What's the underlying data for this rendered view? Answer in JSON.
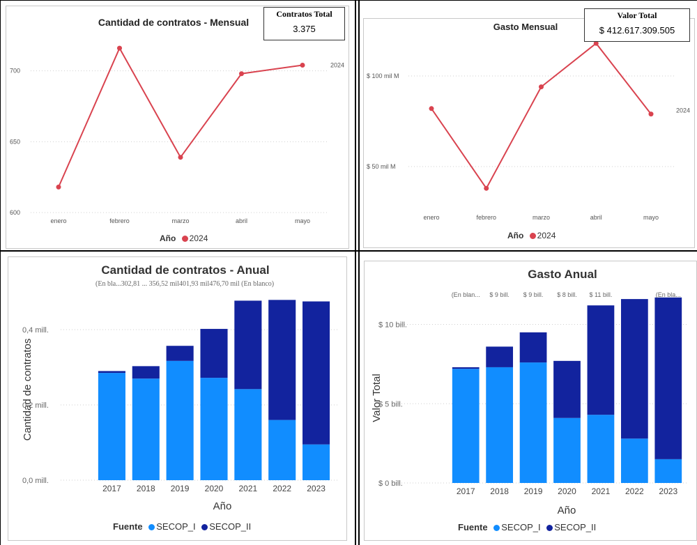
{
  "charts": {
    "monthly_count": {
      "title": "Cantidad de contratos - Mensual",
      "kpi_title": "Contratos Total",
      "kpi_value": "3.375",
      "series_label": "2024",
      "legend_title": "Año",
      "legend_item": "2024",
      "yticks": [
        "600",
        "650",
        "700"
      ],
      "color": "#d9434f"
    },
    "monthly_spend": {
      "title": "Gasto Mensual",
      "kpi_title": "Valor Total",
      "kpi_value": "$ 412.617.309.505",
      "series_label": "2024",
      "legend_title": "Año",
      "legend_item": "2024",
      "yticks": [
        "$ 50 mil M",
        "$ 100 mil M"
      ],
      "color": "#d9434f"
    },
    "annual_count": {
      "title": "Cantidad de contratos - Anual",
      "xlabel": "Año",
      "ylabel": "Cantidad de contratos",
      "yticks": [
        "0,0 mill.",
        "0,2 mill.",
        "0,4 mill."
      ],
      "top_labels": "(En bla...302,81 ... 356,52 mil401,93 mil476,70 mil (En blanco)",
      "legend_title": "Fuente",
      "legend_items": [
        "SECOP_I",
        "SECOP_II"
      ]
    },
    "annual_spend": {
      "title": "Gasto Anual",
      "xlabel": "Año",
      "ylabel": "Valor Total",
      "yticks": [
        "$ 0 bill.",
        "$ 5 bill.",
        "$ 10 bill."
      ],
      "top_labels": [
        "(En blan...",
        "$ 9 bill.",
        "$ 9 bill.",
        "$ 8 bill.",
        "$ 11 bill.",
        "(En bla..."
      ],
      "legend_title": "Fuente",
      "legend_items": [
        "SECOP_I",
        "SECOP_II"
      ]
    }
  },
  "colors": {
    "secop_i": "#118dff",
    "secop_ii": "#12239e",
    "line": "#d9434f"
  },
  "chart_data": [
    {
      "type": "line",
      "title": "Cantidad de contratos - Mensual",
      "categories": [
        "enero",
        "febrero",
        "marzo",
        "abril",
        "mayo"
      ],
      "series": [
        {
          "name": "2024",
          "values": [
            618,
            716,
            639,
            698,
            704
          ]
        }
      ],
      "ylim": [
        600,
        720
      ]
    },
    {
      "type": "line",
      "title": "Gasto Mensual",
      "categories": [
        "enero",
        "febrero",
        "marzo",
        "abril",
        "mayo"
      ],
      "series": [
        {
          "name": "2024",
          "values": [
            82,
            38,
            94,
            118,
            79
          ]
        }
      ],
      "ylabel_unit": "mil M",
      "ylim": [
        30,
        120
      ]
    },
    {
      "type": "bar",
      "stacked": true,
      "title": "Cantidad de contratos - Anual",
      "xlabel": "Año",
      "ylabel": "Cantidad de contratos",
      "categories": [
        "2017",
        "2018",
        "2019",
        "2020",
        "2021",
        "2022",
        "2023"
      ],
      "series": [
        {
          "name": "SECOP_I",
          "values": [
            0.285,
            0.27,
            0.317,
            0.272,
            0.242,
            0.16,
            0.095
          ]
        },
        {
          "name": "SECOP_II",
          "values": [
            0.005,
            0.033,
            0.04,
            0.13,
            0.235,
            0.319,
            0.38
          ]
        }
      ],
      "ylim": [
        0,
        0.5
      ]
    },
    {
      "type": "bar",
      "stacked": true,
      "title": "Gasto Anual",
      "xlabel": "Año",
      "ylabel": "Valor Total",
      "categories": [
        "2017",
        "2018",
        "2019",
        "2020",
        "2021",
        "2022",
        "2023"
      ],
      "series": [
        {
          "name": "SECOP_I",
          "values": [
            7.2,
            7.3,
            7.6,
            4.1,
            4.3,
            2.8,
            1.5
          ]
        },
        {
          "name": "SECOP_II",
          "values": [
            0.1,
            1.3,
            1.9,
            3.6,
            6.9,
            8.8,
            10.2
          ]
        }
      ],
      "ylim": [
        0,
        12
      ]
    }
  ]
}
